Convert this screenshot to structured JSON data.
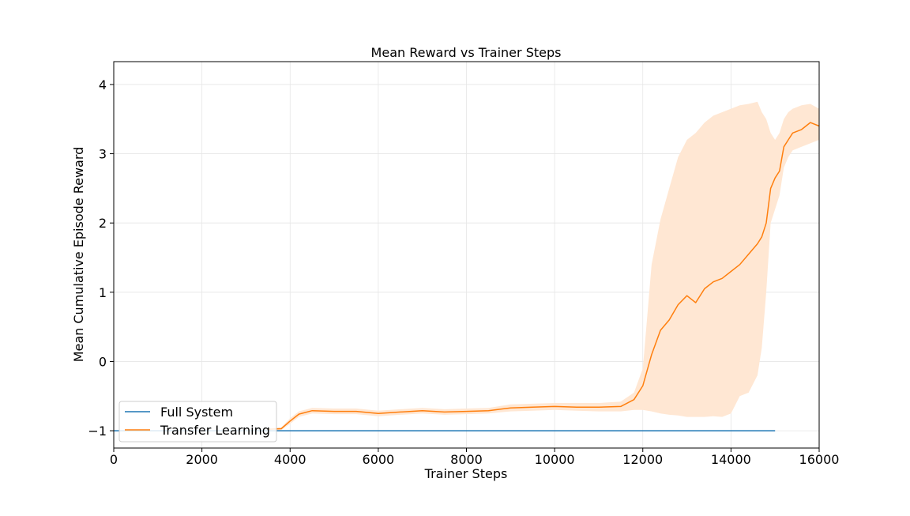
{
  "chart_data": {
    "type": "line",
    "title": "Mean Reward vs Trainer Steps",
    "xlabel": "Trainer Steps",
    "ylabel": "Mean Cumulative Episode Reward",
    "xlim": [
      0,
      16000
    ],
    "ylim": [
      -1.25,
      4.33
    ],
    "xticks": [
      0,
      2000,
      4000,
      6000,
      8000,
      10000,
      12000,
      14000,
      16000
    ],
    "xtick_labels": [
      "0",
      "2000",
      "4000",
      "6000",
      "8000",
      "10000",
      "12000",
      "14000",
      "16000"
    ],
    "yticks": [
      -1,
      0,
      1,
      2,
      3,
      4
    ],
    "ytick_labels": [
      "−1",
      "0",
      "1",
      "2",
      "3",
      "4"
    ],
    "grid": true,
    "legend_position": "lower-left",
    "series": [
      {
        "name": "Full System",
        "color": "#1f77b4",
        "x": [
          0,
          15000
        ],
        "y": [
          -1.0,
          -1.0
        ]
      },
      {
        "name": "Transfer Learning",
        "color": "#ff7f0e",
        "band_color": "#ffe7d3",
        "x": [
          3500,
          3800,
          4000,
          4200,
          4500,
          5000,
          5500,
          6000,
          6500,
          7000,
          7500,
          8000,
          8500,
          9000,
          9500,
          10000,
          10500,
          11000,
          11500,
          11800,
          12000,
          12200,
          12400,
          12600,
          12800,
          13000,
          13200,
          13400,
          13600,
          13800,
          14000,
          14200,
          14400,
          14600,
          14700,
          14800,
          14900,
          15000,
          15100,
          15200,
          15300,
          15400,
          15600,
          15800,
          16000
        ],
        "y": [
          -0.98,
          -0.97,
          -0.86,
          -0.76,
          -0.71,
          -0.72,
          -0.72,
          -0.75,
          -0.73,
          -0.71,
          -0.73,
          -0.72,
          -0.71,
          -0.67,
          -0.66,
          -0.65,
          -0.66,
          -0.66,
          -0.65,
          -0.55,
          -0.35,
          0.1,
          0.45,
          0.6,
          0.82,
          0.95,
          0.85,
          1.05,
          1.15,
          1.2,
          1.3,
          1.4,
          1.55,
          1.7,
          1.8,
          2.0,
          2.5,
          2.65,
          2.75,
          3.1,
          3.2,
          3.3,
          3.35,
          3.45,
          3.4
        ],
        "band_upper": [
          -0.96,
          -0.95,
          -0.82,
          -0.72,
          -0.67,
          -0.68,
          -0.68,
          -0.71,
          -0.69,
          -0.67,
          -0.69,
          -0.68,
          -0.67,
          -0.62,
          -0.61,
          -0.6,
          -0.6,
          -0.6,
          -0.58,
          -0.45,
          -0.1,
          1.4,
          2.05,
          2.5,
          2.95,
          3.2,
          3.3,
          3.45,
          3.55,
          3.6,
          3.65,
          3.7,
          3.72,
          3.75,
          3.6,
          3.5,
          3.3,
          3.2,
          3.3,
          3.5,
          3.6,
          3.65,
          3.7,
          3.72,
          3.65
        ],
        "band_lower": [
          -1.0,
          -0.99,
          -0.9,
          -0.8,
          -0.75,
          -0.76,
          -0.76,
          -0.79,
          -0.77,
          -0.75,
          -0.77,
          -0.76,
          -0.75,
          -0.72,
          -0.71,
          -0.7,
          -0.71,
          -0.72,
          -0.72,
          -0.7,
          -0.7,
          -0.72,
          -0.75,
          -0.77,
          -0.78,
          -0.8,
          -0.8,
          -0.8,
          -0.79,
          -0.8,
          -0.75,
          -0.5,
          -0.45,
          -0.2,
          0.2,
          1.0,
          2.0,
          2.2,
          2.4,
          2.8,
          2.95,
          3.05,
          3.1,
          3.15,
          3.2
        ]
      }
    ]
  }
}
